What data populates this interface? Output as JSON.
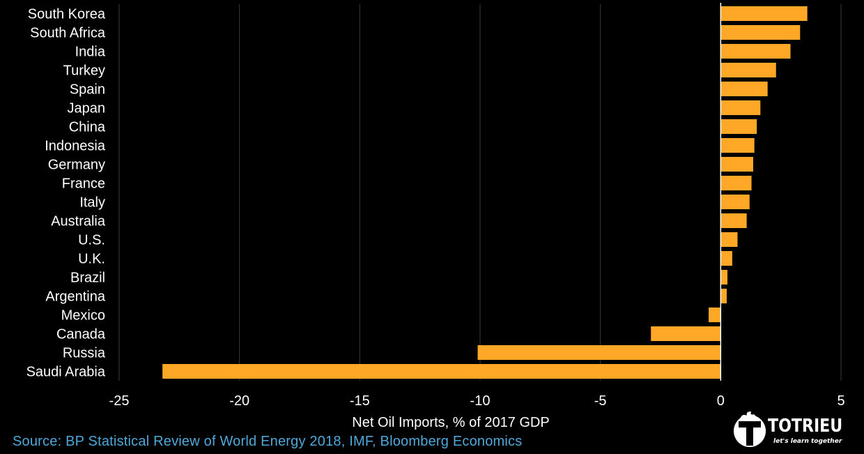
{
  "chart_data": {
    "type": "bar",
    "orientation": "horizontal",
    "categories": [
      "South Korea",
      "South Africa",
      "India",
      "Turkey",
      "Spain",
      "Japan",
      "China",
      "Indonesia",
      "Germany",
      "France",
      "Italy",
      "Australia",
      "U.S.",
      "U.K.",
      "Brazil",
      "Argentina",
      "Mexico",
      "Canada",
      "Russia",
      "Saudi Arabia"
    ],
    "values": [
      3.6,
      3.3,
      2.9,
      2.3,
      1.95,
      1.65,
      1.5,
      1.4,
      1.35,
      1.28,
      1.2,
      1.08,
      0.7,
      0.48,
      0.28,
      0.25,
      -0.5,
      -2.9,
      -10.1,
      -23.2
    ],
    "xlabel": "Net Oil Imports, % of 2017 GDP",
    "xlim": [
      -25,
      5
    ],
    "xticks": [
      -25,
      -20,
      -15,
      -10,
      -5,
      0,
      5
    ],
    "xtick_labels": [
      "-25",
      "-20",
      "-15",
      "-10",
      "-5",
      "0",
      "5"
    ],
    "grid": "vertical",
    "colors": {
      "bar": "#FFA726",
      "background": "#000000",
      "grid": "#3a3a3a",
      "axis": "#ffffff",
      "text": "#ffffff"
    }
  },
  "footer": {
    "source": "Source: BP Statistical Review of World Energy 2018, IMF, Bloomberg Economics",
    "source_color": "#4FA8D8"
  },
  "logo": {
    "name": "TOTRIEU",
    "tagline": "let's learn together"
  }
}
